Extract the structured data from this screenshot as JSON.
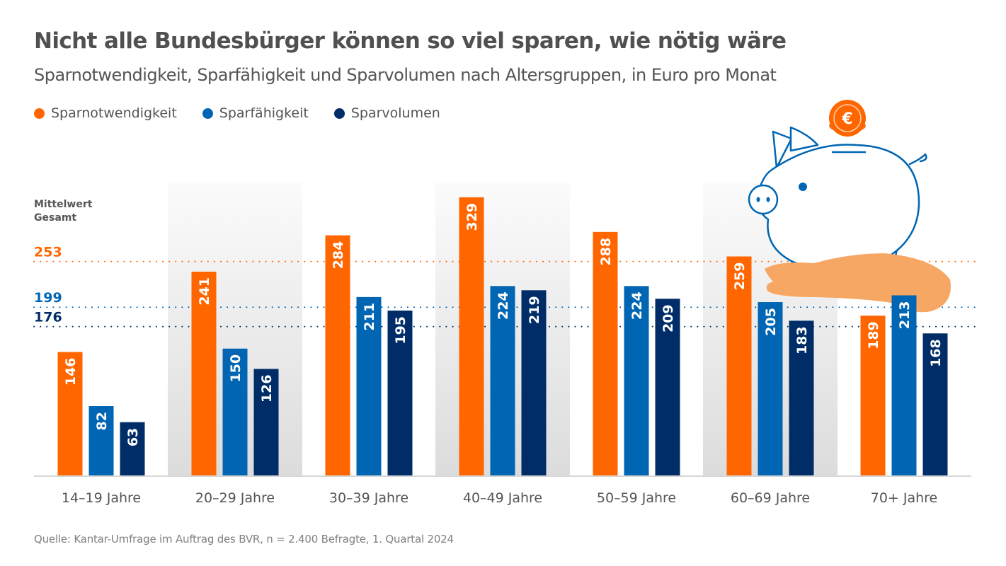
{
  "title": "Nicht alle Bundesbürger können so viel sparen, wie nötig wäre",
  "subtitle": "Sparnotwendigkeit, Sparfähigkeit und Sparvolumen nach Altersgruppen, in Euro pro Monat",
  "legend": [
    {
      "label": "Sparnotwendigkeit",
      "color": "#ff6600"
    },
    {
      "label": "Sparfähigkeit",
      "color": "#0066b3"
    },
    {
      "label": "Sparvolumen",
      "color": "#002d67"
    }
  ],
  "mean": {
    "title_line1": "Mittelwert",
    "title_line2": "Gesamt",
    "values": [
      {
        "label": "253",
        "value": 253,
        "color": "#ff6600"
      },
      {
        "label": "199",
        "value": 199,
        "color": "#0066b3"
      },
      {
        "label": "176",
        "value": 176,
        "color": "#002d67"
      }
    ]
  },
  "source": "Quelle: Kantar-Umfrage im Auftrag des BVR, n = 2.400 Befragte, 1. Quartal 2024",
  "illustration": {
    "coin_symbol": "€",
    "description": "piggy-bank-on-hand"
  },
  "chart_data": {
    "type": "bar",
    "title": "Nicht alle Bundesbürger können so viel sparen, wie nötig wäre",
    "subtitle": "Sparnotwendigkeit, Sparfähigkeit und Sparvolumen nach Altersgruppen, in Euro pro Monat",
    "xlabel": "",
    "ylabel": "",
    "ylim": [
      0,
      340
    ],
    "grid": false,
    "legend_position": "top-left",
    "categories": [
      "14–19 Jahre",
      "20–29 Jahre",
      "30–39 Jahre",
      "40–49 Jahre",
      "50–59 Jahre",
      "60–69 Jahre",
      "70+ Jahre"
    ],
    "series": [
      {
        "name": "Sparnotwendigkeit",
        "color": "#ff6600",
        "values": [
          146,
          241,
          284,
          329,
          288,
          259,
          189
        ]
      },
      {
        "name": "Sparfähigkeit",
        "color": "#0066b3",
        "values": [
          82,
          150,
          211,
          224,
          224,
          205,
          213
        ]
      },
      {
        "name": "Sparvolumen",
        "color": "#002d67",
        "values": [
          63,
          126,
          195,
          219,
          209,
          183,
          168
        ]
      }
    ],
    "reference_lines": [
      {
        "name": "Mittelwert Gesamt Sparnotwendigkeit",
        "value": 253,
        "color": "#ff6600"
      },
      {
        "name": "Mittelwert Gesamt Sparfähigkeit",
        "value": 199,
        "color": "#0066b3"
      },
      {
        "name": "Mittelwert Gesamt Sparvolumen",
        "value": 176,
        "color": "#002d67"
      }
    ],
    "shaded_categories": [
      "20–29 Jahre",
      "40–49 Jahre",
      "60–69 Jahre"
    ]
  }
}
